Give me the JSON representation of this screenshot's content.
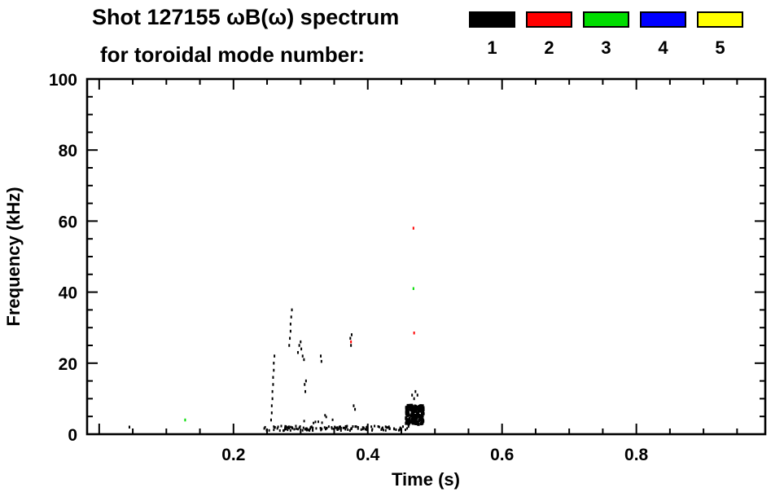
{
  "page": {
    "background": "#ffffff"
  },
  "chart_data": {
    "type": "scatter",
    "title_line1": "Shot 127155 ωB(ω) spectrum",
    "title_line2": "for toroidal mode number:",
    "xlabel": "Time (s)",
    "ylabel": "Frequency (kHz)",
    "xlim": [
      -0.018,
      0.992
    ],
    "ylim": [
      0,
      100
    ],
    "xticks": [
      0.2,
      0.4,
      0.6,
      0.8
    ],
    "xtick_labels": [
      "0.2",
      "0.4",
      "0.6",
      "0.8"
    ],
    "xminor": 0.05,
    "yticks": [
      0,
      20,
      40,
      60,
      80,
      100
    ],
    "ytick_labels": [
      "0",
      "20",
      "40",
      "60",
      "80",
      "100"
    ],
    "yminor": 5,
    "grid": false,
    "legend_position": "top-right",
    "mark": {
      "w": 2,
      "h": 3.5
    },
    "legend": {
      "items": [
        {
          "label": "1",
          "color": "#000000"
        },
        {
          "label": "2",
          "color": "#ff0000"
        },
        {
          "label": "3",
          "color": "#00dd00"
        },
        {
          "label": "4",
          "color": "#0000ff"
        },
        {
          "label": "5",
          "color": "#ffff00"
        }
      ]
    },
    "series": [
      {
        "mode": 1,
        "name": "n=1",
        "color": "#000000",
        "points": [
          [
            0.045,
            2
          ],
          [
            0.256,
            4
          ],
          [
            0.257,
            6
          ],
          [
            0.257,
            8
          ],
          [
            0.258,
            10
          ],
          [
            0.258,
            12
          ],
          [
            0.259,
            14
          ],
          [
            0.259,
            16
          ],
          [
            0.26,
            18
          ],
          [
            0.26,
            20
          ],
          [
            0.261,
            22
          ],
          [
            0.283,
            25
          ],
          [
            0.284,
            27
          ],
          [
            0.285,
            29
          ],
          [
            0.285,
            31
          ],
          [
            0.286,
            33
          ],
          [
            0.287,
            35
          ],
          [
            0.296,
            23
          ],
          [
            0.298,
            25
          ],
          [
            0.3,
            26
          ],
          [
            0.301,
            24
          ],
          [
            0.303,
            22
          ],
          [
            0.305,
            21
          ],
          [
            0.306,
            14
          ],
          [
            0.307,
            12
          ],
          [
            0.308,
            15
          ],
          [
            0.33,
            22
          ],
          [
            0.331,
            20.5
          ],
          [
            0.374,
            27
          ],
          [
            0.375,
            25
          ],
          [
            0.376,
            28
          ],
          [
            0.379,
            8
          ],
          [
            0.381,
            7
          ],
          [
            0.466,
            11
          ],
          [
            0.469,
            10
          ],
          [
            0.471,
            12
          ],
          [
            0.474,
            11
          ]
        ]
      },
      {
        "mode": 2,
        "name": "n=2",
        "color": "#ff0000",
        "points": [
          [
            0.375,
            26
          ],
          [
            0.468,
            58
          ],
          [
            0.469,
            28.5
          ]
        ]
      },
      {
        "mode": 3,
        "name": "n=3",
        "color": "#00dd00",
        "points": [
          [
            0.128,
            4
          ],
          [
            0.468,
            41
          ]
        ]
      },
      {
        "mode": 4,
        "name": "n=4",
        "color": "#0000ff",
        "points": []
      },
      {
        "mode": 5,
        "name": "n=5",
        "color": "#ffff00",
        "points": []
      }
    ],
    "clusters": [
      {
        "mode": 1,
        "t0": 0.245,
        "t1": 0.462,
        "f0": 1.0,
        "f1": 2.3,
        "count": 130,
        "w": 2,
        "h": 3
      },
      {
        "mode": 1,
        "t0": 0.457,
        "t1": 0.483,
        "f0": 2.8,
        "f1": 8.2,
        "count": 160,
        "w": 3,
        "h": 4
      },
      {
        "mode": 1,
        "t0": 0.3,
        "t1": 0.36,
        "f0": 3.0,
        "f1": 5.5,
        "count": 8,
        "w": 2,
        "h": 3
      }
    ]
  }
}
